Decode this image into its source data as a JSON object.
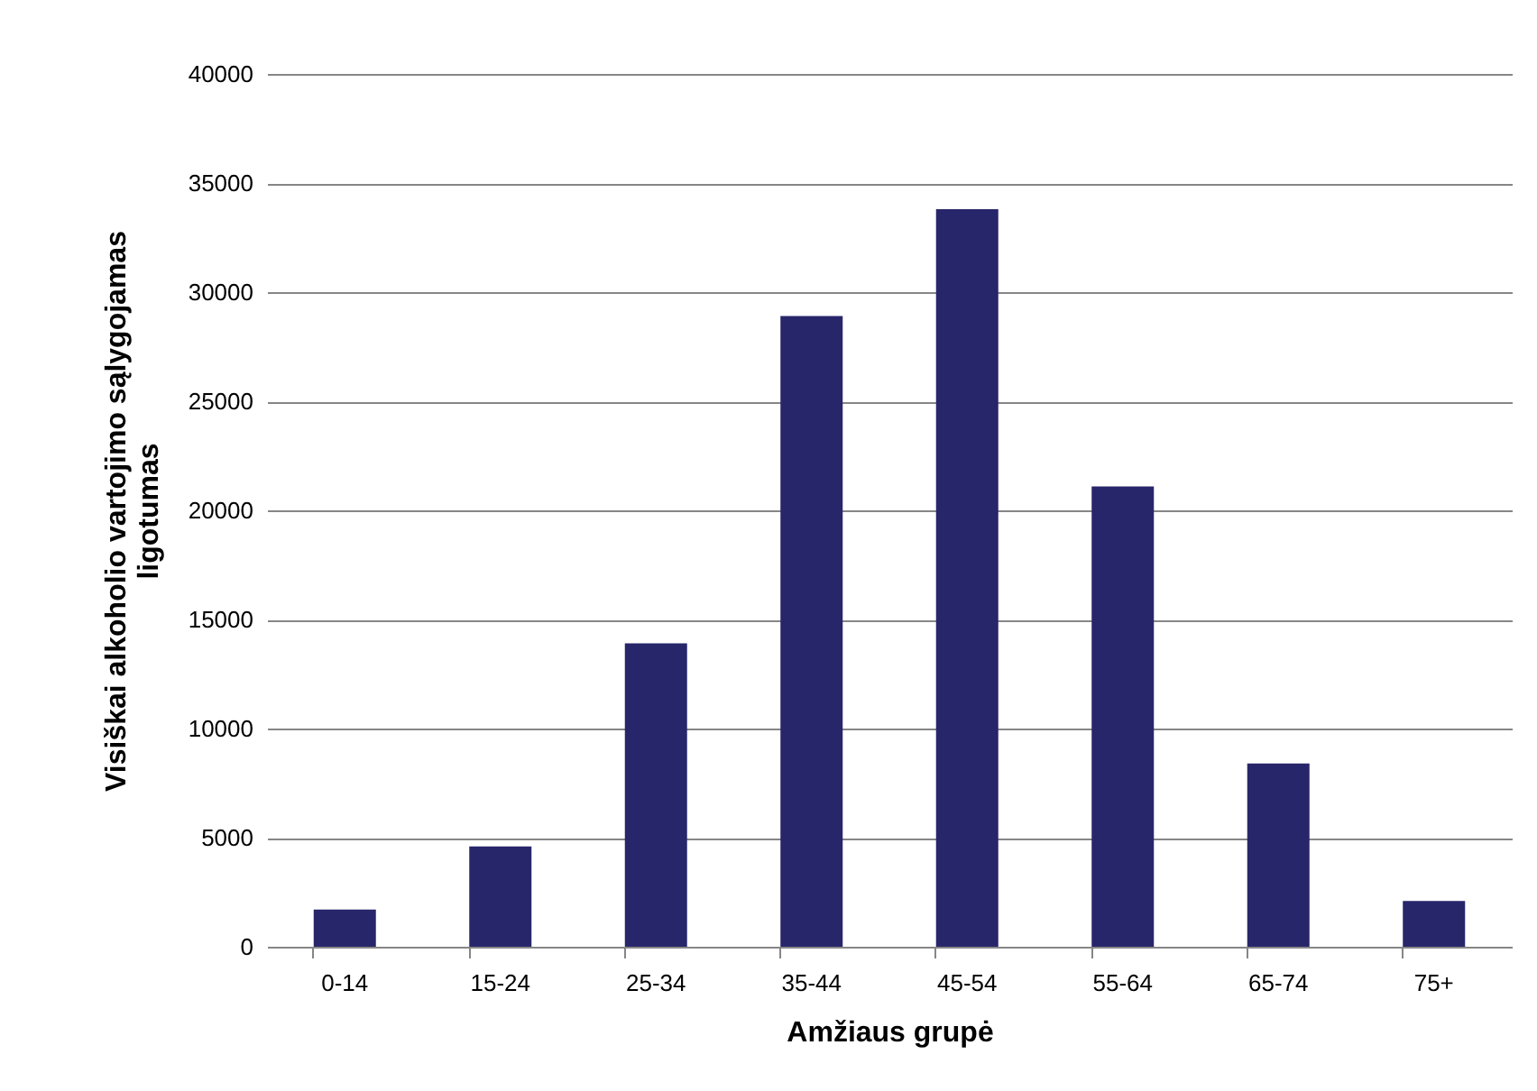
{
  "chart_data": {
    "type": "bar",
    "xlabel": "Amžiaus grupė",
    "ylabel": "Visiškai alkoholio vartojimo sąlygojamas ligotumas",
    "categories": [
      "0-14",
      "15-24",
      "25-34",
      "35-44",
      "45-54",
      "55-64",
      "65-74",
      "75+"
    ],
    "values": [
      1700,
      4600,
      13900,
      28900,
      33800,
      21100,
      8400,
      2100
    ],
    "color": "#28266a",
    "ylim": [
      0,
      40000
    ],
    "yticks": [
      0,
      5000,
      10000,
      15000,
      20000,
      25000,
      30000,
      35000,
      40000
    ],
    "grid": "y",
    "legend": false
  }
}
